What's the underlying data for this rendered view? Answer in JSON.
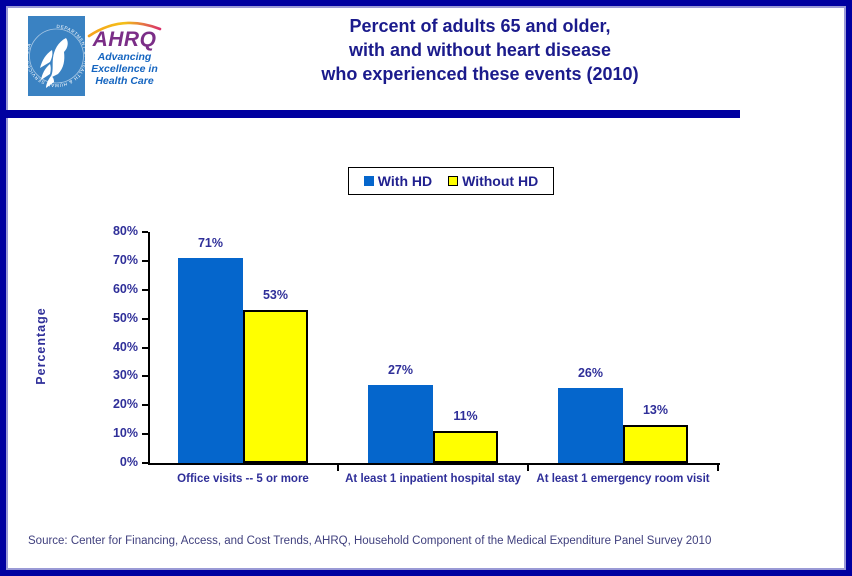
{
  "header": {
    "logo": {
      "hhs_seal_text": "DEPARTMENT OF HEALTH & HUMAN SERVICES - USA",
      "ahrq_name": "AHRQ",
      "tagline_lines": [
        "Advancing",
        "Excellence in",
        "Health Care"
      ]
    },
    "title_lines": [
      "Percent of adults 65 and older,",
      "with and without heart disease",
      "who experienced these events (2010)"
    ]
  },
  "chart_data": {
    "type": "bar",
    "categories": [
      "Office visits -- 5 or more",
      "At least 1 inpatient hospital stay",
      "At least 1 emergency room visit"
    ],
    "series": [
      {
        "name": "With HD",
        "color": "#0566cc",
        "values": [
          71,
          27,
          26
        ]
      },
      {
        "name": "Without HD",
        "color": "#ffff00",
        "values": [
          53,
          11,
          13
        ]
      }
    ],
    "value_label_suffix": "%",
    "ylabel": "Percentage",
    "y_ticks": [
      "80%",
      "70%",
      "60%",
      "50%",
      "40%",
      "30%",
      "20%",
      "10%",
      "0%"
    ],
    "ylim": [
      0,
      80
    ],
    "grid": false,
    "legend_position": "top-center"
  },
  "footer": {
    "source": "Source: Center for Financing, Access, and Cost Trends, AHRQ, Household Component of the Medical Expenditure Panel Survey 2010"
  },
  "colors": {
    "frame_border": "#0000a0",
    "title_text": "#1b1b8c",
    "chart_text": "#2f2f99",
    "bar_blue": "#0566cc",
    "bar_yellow": "#ffff00",
    "hhs_square": "#3a82c2",
    "ahrq_purple": "#7b2e87",
    "tagline_blue": "#1565c0"
  }
}
